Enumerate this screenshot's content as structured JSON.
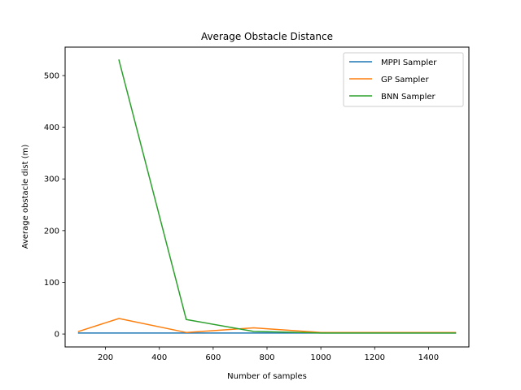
{
  "chart_data": {
    "type": "line",
    "title": "Average Obstacle Distance",
    "xlabel": "Number of samples",
    "ylabel": "Average obstacle dist (m)",
    "xlim": [
      50,
      1550
    ],
    "ylim": [
      -25,
      555
    ],
    "xticks": [
      200,
      400,
      600,
      800,
      1000,
      1200,
      1400
    ],
    "yticks": [
      0,
      100,
      200,
      300,
      400,
      500
    ],
    "grid": false,
    "legend_position": "top-right",
    "series": [
      {
        "name": "MPPI Sampler",
        "color": "#1f77b4",
        "x": [
          100,
          250,
          500,
          750,
          1000,
          1250,
          1500
        ],
        "y": [
          2,
          2,
          2,
          2,
          2,
          2,
          2
        ]
      },
      {
        "name": "GP Sampler",
        "color": "#ff7f0e",
        "x": [
          100,
          250,
          500,
          750,
          1000,
          1250,
          1500
        ],
        "y": [
          5,
          30,
          3,
          12,
          3,
          3,
          3
        ]
      },
      {
        "name": "BNN Sampler",
        "color": "#2ca02c",
        "x": [
          250,
          500,
          750,
          1000,
          1250,
          1500
        ],
        "y": [
          530,
          28,
          5,
          2,
          2,
          2
        ]
      }
    ]
  }
}
